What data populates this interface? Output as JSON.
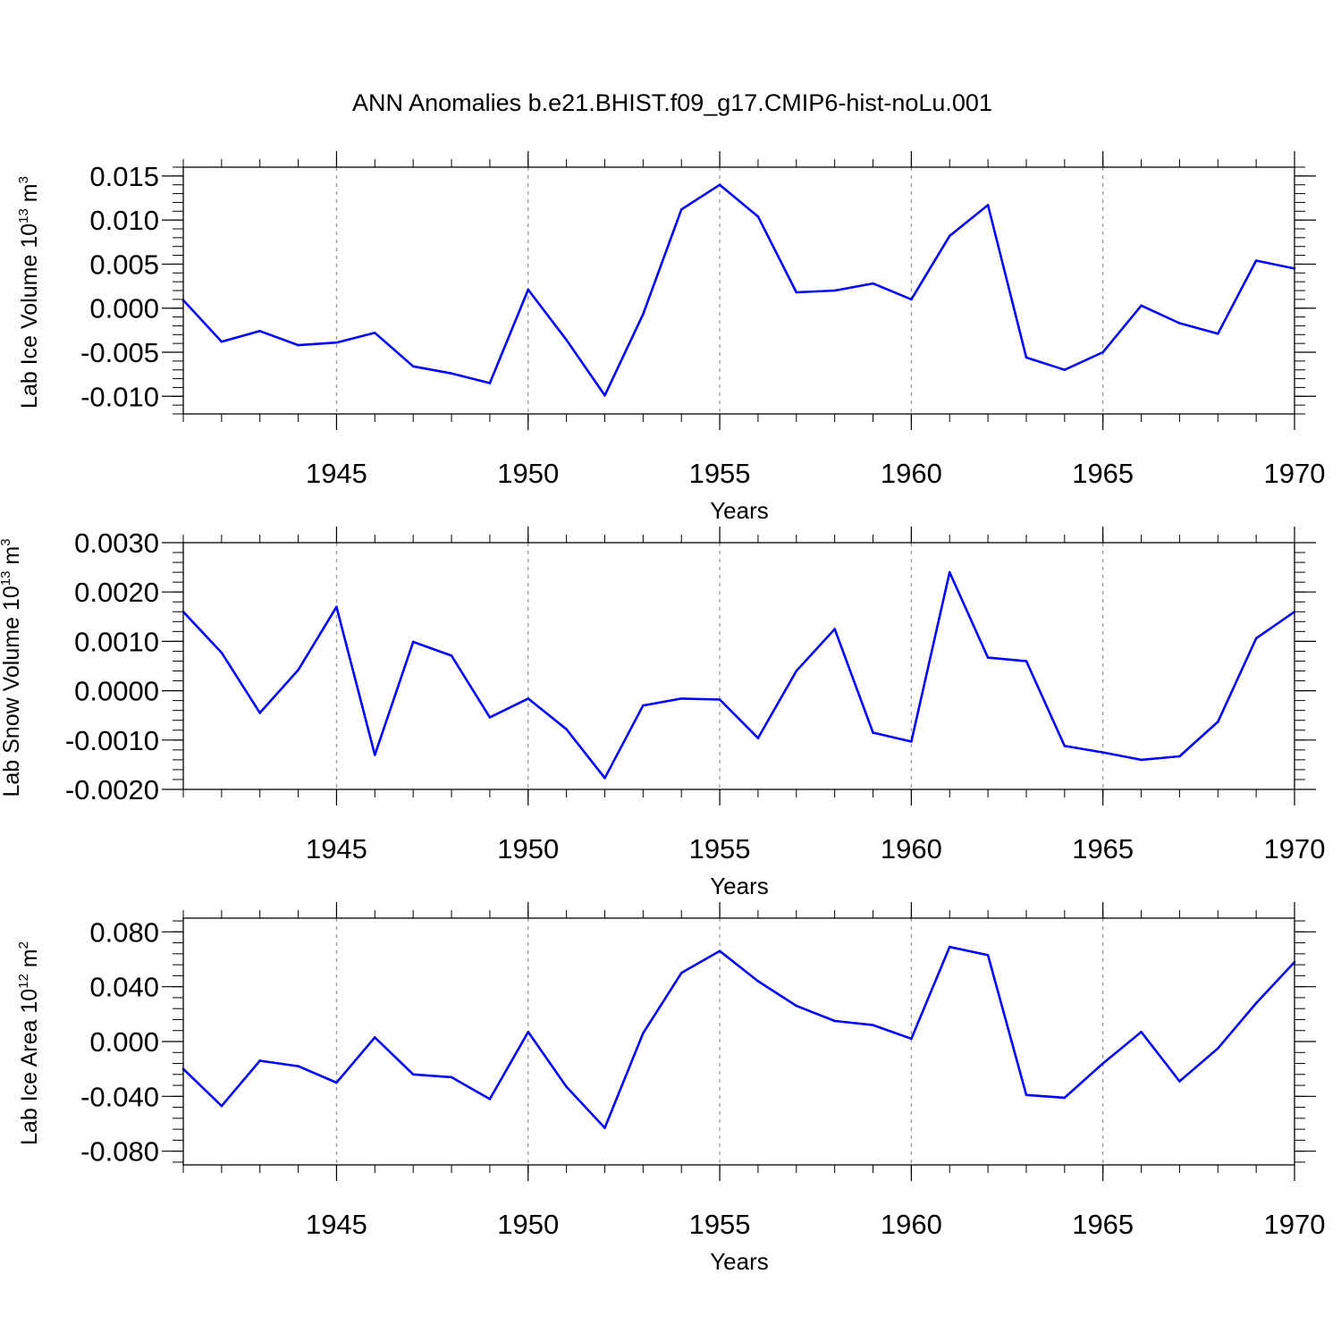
{
  "title": "ANN Anomalies b.e21.BHIST.f09_g17.CMIP6-hist-noLu.001",
  "colors": {
    "line": "#0000ff",
    "axis": "#000000",
    "grid": "#9a9a9a"
  },
  "chart_data": [
    {
      "type": "line",
      "title": "",
      "xlabel": "Years",
      "ylabel": "Lab Ice Volume 10",
      "ylabel_exp": "13",
      "ylabel_unit": " m",
      "ylabel_unit_exp": "3",
      "xlim": [
        1941,
        1970
      ],
      "ylim": [
        -0.012,
        0.016
      ],
      "xticks": [
        "1945",
        "1950",
        "1955",
        "1960",
        "1965",
        "1970"
      ],
      "yticks": [
        "0.015",
        "0.010",
        "0.005",
        "0.000",
        "-0.005",
        "-0.010"
      ],
      "grid": "vertical dashed at major x ticks",
      "x": [
        1941,
        1942,
        1943,
        1944,
        1945,
        1946,
        1947,
        1948,
        1949,
        1950,
        1951,
        1952,
        1953,
        1954,
        1955,
        1956,
        1957,
        1958,
        1959,
        1960,
        1961,
        1962,
        1963,
        1964,
        1965,
        1966,
        1967,
        1968,
        1969,
        1970
      ],
      "series": [
        {
          "values": [
            0.0009,
            -0.0038,
            -0.0026,
            -0.0042,
            -0.0039,
            -0.0028,
            -0.0066,
            -0.0074,
            -0.0085,
            0.0021,
            -0.0036,
            -0.0099,
            -0.0007,
            0.0112,
            0.014,
            0.0104,
            0.0018,
            0.002,
            0.0028,
            0.001,
            0.0082,
            0.0117,
            -0.0056,
            -0.007,
            -0.005,
            0.0003,
            -0.0017,
            -0.0029,
            0.0054,
            0.0045
          ]
        }
      ]
    },
    {
      "type": "line",
      "title": "",
      "xlabel": "Years",
      "ylabel": "Lab Snow Volume 10",
      "ylabel_exp": "13",
      "ylabel_unit": " m",
      "ylabel_unit_exp": "3",
      "xlim": [
        1941,
        1970
      ],
      "ylim": [
        -0.002,
        0.003
      ],
      "xticks": [
        "1945",
        "1950",
        "1955",
        "1960",
        "1965",
        "1970"
      ],
      "yticks": [
        "0.0030",
        "0.0020",
        "0.0010",
        "0.0000",
        "-0.0010",
        "-0.0020"
      ],
      "grid": "vertical dashed at major x ticks",
      "x": [
        1941,
        1942,
        1943,
        1944,
        1945,
        1946,
        1947,
        1948,
        1949,
        1950,
        1951,
        1952,
        1953,
        1954,
        1955,
        1956,
        1957,
        1958,
        1959,
        1960,
        1961,
        1962,
        1963,
        1964,
        1965,
        1966,
        1967,
        1968,
        1969,
        1970
      ],
      "series": [
        {
          "values": [
            0.0016,
            0.00077,
            -0.00045,
            0.00042,
            0.0017,
            -0.0013,
            0.00099,
            0.00071,
            -0.00054,
            -0.00016,
            -0.00078,
            -0.00177,
            -0.0003,
            -0.00016,
            -0.00018,
            -0.00096,
            0.0004,
            0.00125,
            -0.00085,
            -0.00103,
            0.0024,
            0.00067,
            0.0006,
            -0.00112,
            -0.00125,
            -0.0014,
            -0.00133,
            -0.00063,
            0.00106,
            0.0016
          ]
        }
      ]
    },
    {
      "type": "line",
      "title": "",
      "xlabel": "Years",
      "ylabel": "Lab Ice Area 10",
      "ylabel_exp": "12",
      "ylabel_unit": " m",
      "ylabel_unit_exp": "2",
      "xlim": [
        1941,
        1970
      ],
      "ylim": [
        -0.09,
        0.09
      ],
      "xticks": [
        "1945",
        "1950",
        "1955",
        "1960",
        "1965",
        "1970"
      ],
      "yticks": [
        "0.080",
        "0.040",
        "0.000",
        "-0.040",
        "-0.080"
      ],
      "grid": "vertical dashed at major x ticks",
      "x": [
        1941,
        1942,
        1943,
        1944,
        1945,
        1946,
        1947,
        1948,
        1949,
        1950,
        1951,
        1952,
        1953,
        1954,
        1955,
        1956,
        1957,
        1958,
        1959,
        1960,
        1961,
        1962,
        1963,
        1964,
        1965,
        1966,
        1967,
        1968,
        1969,
        1970
      ],
      "series": [
        {
          "values": [
            -0.02,
            -0.047,
            -0.014,
            -0.018,
            -0.03,
            0.003,
            -0.024,
            -0.026,
            -0.042,
            0.007,
            -0.033,
            -0.063,
            0.006,
            0.05,
            0.066,
            0.044,
            0.026,
            0.015,
            0.012,
            0.002,
            0.069,
            0.063,
            -0.039,
            -0.041,
            -0.016,
            0.007,
            -0.029,
            -0.005,
            0.028,
            0.058
          ]
        }
      ]
    }
  ]
}
